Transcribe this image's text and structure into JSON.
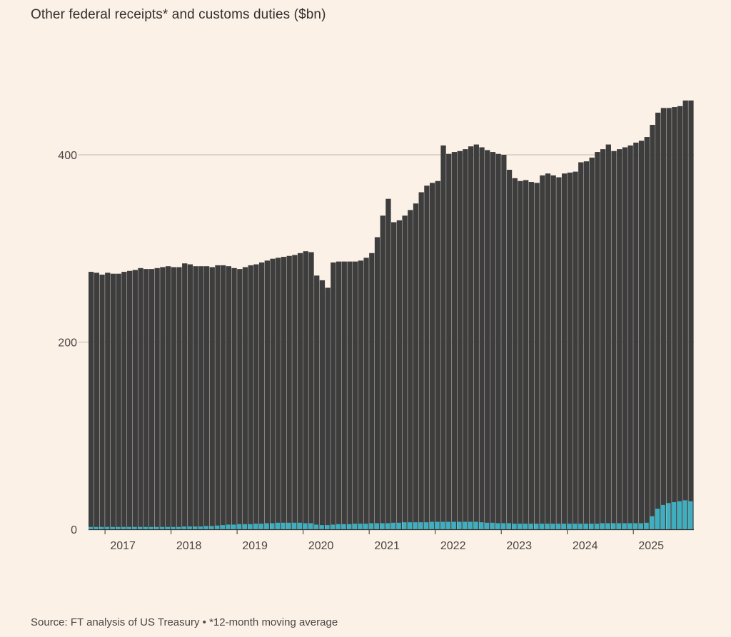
{
  "chart_data": {
    "type": "bar",
    "title": "Other federal receipts* and customs duties ($bn)",
    "source": "Source: FT analysis of US Treasury • *12-month moving average",
    "stacked": false,
    "ylim": [
      0,
      460
    ],
    "yticks": [
      0,
      200,
      400
    ],
    "xticks": [
      "2017",
      "2018",
      "2019",
      "2020",
      "2021",
      "2022",
      "2023",
      "2024",
      "2025"
    ],
    "start": "2016-10",
    "colors": {
      "other_receipts": "#3d3d3d",
      "customs_duties": "#3cafc1",
      "gridline": "#bfb7ad",
      "background": "#fcf1e6"
    },
    "series": [
      {
        "key": "other_receipts",
        "values": [
          275,
          274,
          272,
          274,
          273,
          273,
          275,
          276,
          277,
          279,
          278,
          278,
          279,
          280,
          281,
          280,
          280,
          284,
          283,
          281,
          281,
          281,
          280,
          282,
          282,
          281,
          279,
          278,
          280,
          282,
          283,
          285,
          287,
          289,
          290,
          291,
          292,
          293,
          295,
          297,
          296,
          271,
          266,
          258,
          285,
          286,
          286,
          286,
          286,
          287,
          290,
          295,
          312,
          335,
          353,
          328,
          330,
          335,
          341,
          348,
          360,
          367,
          370,
          372,
          410,
          401,
          403,
          404,
          406,
          409,
          411,
          408,
          405,
          403,
          401,
          400,
          384,
          375,
          372,
          373,
          371,
          370,
          378,
          380,
          378,
          376,
          380,
          381,
          382,
          392,
          393,
          397,
          403,
          406,
          411,
          404,
          406,
          408,
          410,
          413,
          415,
          419,
          432,
          445,
          450,
          450,
          451,
          452,
          458,
          458
        ]
      },
      {
        "key": "customs_duties",
        "values": [
          2.5,
          2.5,
          2.5,
          2.5,
          2.5,
          2.5,
          2.5,
          2.5,
          2.5,
          2.5,
          2.5,
          2.5,
          2.5,
          2.5,
          2.5,
          2.5,
          2.5,
          3,
          3,
          3,
          3,
          3.5,
          3.5,
          4,
          4.5,
          5,
          5,
          5.5,
          5.5,
          5.5,
          6,
          6,
          6.5,
          6.5,
          7,
          7,
          7,
          7,
          7,
          6.5,
          6.5,
          5,
          4.5,
          4.5,
          5,
          5.5,
          5.5,
          5.5,
          6,
          6,
          6,
          6.5,
          6.5,
          6.5,
          6.5,
          7,
          7,
          7.5,
          7.5,
          7.5,
          7.5,
          7.5,
          8,
          8,
          8,
          8,
          8,
          8,
          8,
          8,
          8,
          7.5,
          7,
          7,
          6.5,
          6.5,
          6.5,
          6,
          6,
          6,
          6,
          6,
          6,
          6,
          6,
          6,
          6,
          6,
          6,
          6,
          6,
          6,
          6,
          6.5,
          6.5,
          6.5,
          6.5,
          6.5,
          6.5,
          6.5,
          6.5,
          7,
          14,
          22,
          26,
          28,
          29,
          30,
          31,
          30
        ]
      }
    ]
  }
}
